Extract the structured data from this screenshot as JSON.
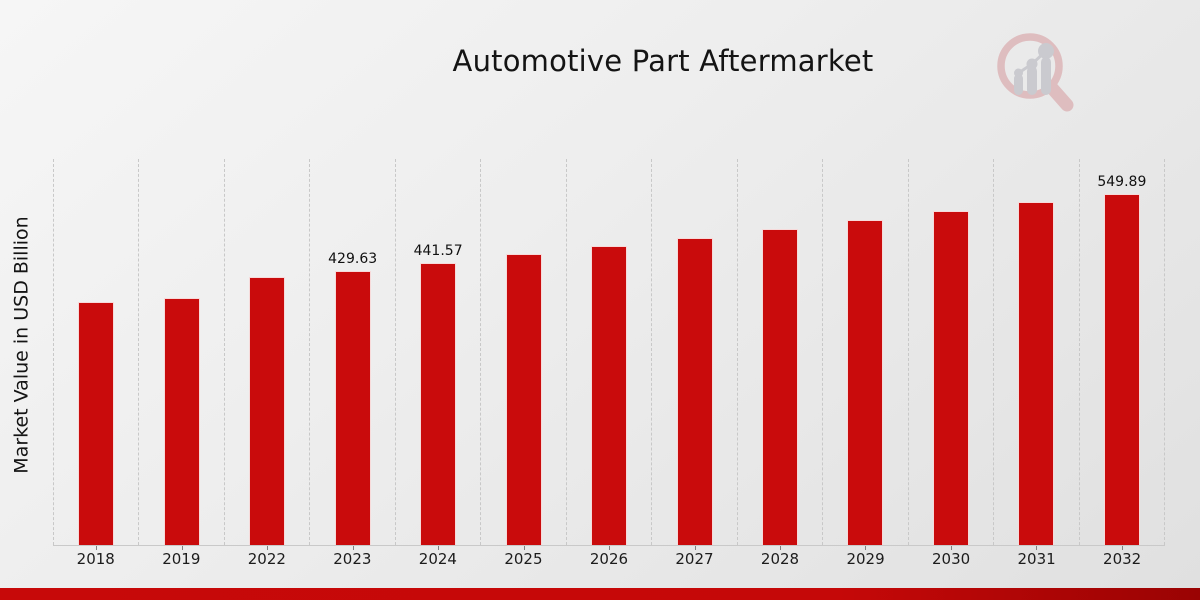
{
  "title": "Automotive Part Aftermarket",
  "y_axis_label": "Market Value in USD Billion",
  "branding": {
    "logo_icon": "magnifier-growth-chart-logo"
  },
  "colors": {
    "bar": "#c90b0c",
    "grid": "#c8c8c8",
    "axis": "#c9c9c9",
    "text": "#141414",
    "bottom_band": "#c70909",
    "logo_ring": "#ddb6b8",
    "logo_bars": "#c5c5cb"
  },
  "chart_data": {
    "type": "bar",
    "title": "Automotive Part Aftermarket",
    "xlabel": "",
    "ylabel": "Market Value in USD Billion",
    "unit": "USD Billion",
    "categories": [
      "2018",
      "2019",
      "2022",
      "2023",
      "2024",
      "2025",
      "2026",
      "2027",
      "2028",
      "2029",
      "2030",
      "2031",
      "2032"
    ],
    "values": [
      379.9,
      387.0,
      418.8,
      429.63,
      441.57,
      455.1,
      468.6,
      481.3,
      495.0,
      509.1,
      522.9,
      537.1,
      549.89
    ],
    "data_labels": {
      "2023": "429.63",
      "2024": "441.57",
      "2032": "549.89"
    },
    "ylim": [
      0,
      610
    ],
    "grid": "vertical-dashed-category-boundaries",
    "legend": "none",
    "bar_color": "#c90b0c"
  }
}
